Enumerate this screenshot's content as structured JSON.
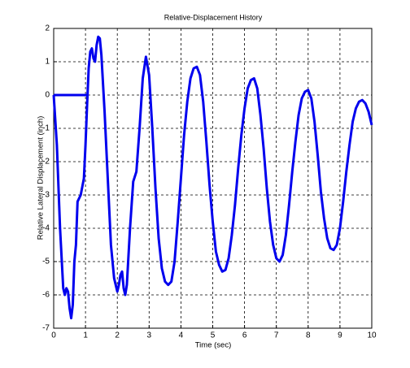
{
  "chart_data": {
    "type": "line",
    "title": "Relative-Displacement History",
    "x_label": "Time (sec)",
    "y_label": "Relative Lateral Displacement (inch)",
    "xlim": [
      0,
      10
    ],
    "ylim": [
      -7,
      2
    ],
    "xticks": [
      0,
      1,
      2,
      3,
      4,
      5,
      6,
      7,
      8,
      9,
      10
    ],
    "yticks": [
      -7,
      -6,
      -5,
      -4,
      -3,
      -2,
      -1,
      0,
      1,
      2
    ],
    "grid": true,
    "series": [
      {
        "color": "#0000ee",
        "x": [
          0,
          0.1,
          0.2,
          0.3,
          0.35,
          0.4,
          0.45,
          0.5,
          0.55,
          0.6,
          0.65,
          0.7,
          0.75,
          0.85,
          0.95,
          1.0,
          1.05,
          1.1,
          1.15,
          1.2,
          1.25,
          1.3,
          1.35,
          1.4,
          1.45,
          1.5,
          1.6,
          1.7,
          1.8,
          1.9,
          2.0,
          2.05,
          2.1,
          2.15,
          2.2,
          2.25,
          2.3,
          2.4,
          2.5,
          2.6,
          2.7,
          2.8,
          2.9,
          3.0,
          3.1,
          3.2,
          3.3,
          3.4,
          3.5,
          3.6,
          3.7,
          3.8,
          3.9,
          4.0,
          4.1,
          4.2,
          4.3,
          4.4,
          4.5,
          4.6,
          4.7,
          4.8,
          4.9,
          5.0,
          5.1,
          5.2,
          5.3,
          5.4,
          5.5,
          5.6,
          5.7,
          5.8,
          5.9,
          6.0,
          6.1,
          6.2,
          6.3,
          6.4,
          6.5,
          6.6,
          6.7,
          6.8,
          6.9,
          7.0,
          7.1,
          7.2,
          7.3,
          7.4,
          7.5,
          7.6,
          7.7,
          7.8,
          7.9,
          8.0,
          8.1,
          8.2,
          8.3,
          8.4,
          8.5,
          8.6,
          8.7,
          8.8,
          8.9,
          9.0,
          9.1,
          9.2,
          9.3,
          9.4,
          9.5,
          9.6,
          9.7,
          9.8,
          9.9,
          10.0
        ],
        "values": [
          0,
          -1.5,
          -4,
          -5.8,
          -6.0,
          -5.8,
          -5.9,
          -6.4,
          -6.7,
          -6.3,
          -5.0,
          -4.5,
          -3.2,
          -3.0,
          -2.5,
          -1.5,
          -0.3,
          0.8,
          1.3,
          1.4,
          1.1,
          1.0,
          1.5,
          1.75,
          1.7,
          1.2,
          -0.5,
          -2.5,
          -4.5,
          -5.5,
          -5.9,
          -5.7,
          -5.4,
          -5.3,
          -5.8,
          -6.0,
          -5.7,
          -4.0,
          -2.6,
          -2.3,
          -1.0,
          0.5,
          1.15,
          0.6,
          -1.0,
          -2.8,
          -4.3,
          -5.2,
          -5.6,
          -5.7,
          -5.6,
          -5.0,
          -3.8,
          -2.5,
          -1.2,
          -0.2,
          0.5,
          0.8,
          0.85,
          0.6,
          -0.2,
          -1.4,
          -2.7,
          -3.8,
          -4.7,
          -5.1,
          -5.3,
          -5.25,
          -4.9,
          -4.2,
          -3.3,
          -2.2,
          -1.2,
          -0.4,
          0.2,
          0.45,
          0.5,
          0.2,
          -0.6,
          -1.6,
          -2.8,
          -3.8,
          -4.5,
          -4.9,
          -5.0,
          -4.8,
          -4.2,
          -3.3,
          -2.3,
          -1.4,
          -0.6,
          -0.1,
          0.1,
          0.15,
          -0.1,
          -0.8,
          -1.8,
          -2.9,
          -3.7,
          -4.3,
          -4.6,
          -4.65,
          -4.5,
          -4.0,
          -3.2,
          -2.3,
          -1.5,
          -0.8,
          -0.4,
          -0.2,
          -0.15,
          -0.25,
          -0.5,
          -0.9
        ]
      },
      {
        "color": "#0000ee",
        "x": [
          0,
          1.05
        ],
        "values": [
          0,
          0
        ]
      }
    ]
  }
}
